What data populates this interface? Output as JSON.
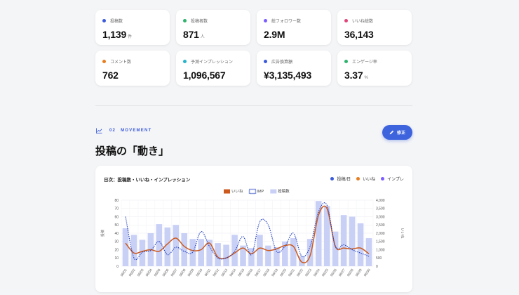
{
  "kpis": [
    {
      "label": "投稿数",
      "value": "1,139",
      "unit": "件",
      "color": "#3b5bdb"
    },
    {
      "label": "投稿者数",
      "value": "871",
      "unit": "人",
      "color": "#2fb36d"
    },
    {
      "label": "総フォロワー数",
      "value": "2.9M",
      "unit": "",
      "color": "#7c5cff"
    },
    {
      "label": "いいね総数",
      "value": "36,143",
      "unit": "",
      "color": "#e0457b"
    },
    {
      "label": "コメント数",
      "value": "762",
      "unit": "",
      "color": "#e67e22"
    },
    {
      "label": "予測インプレッション",
      "value": "1,096,567",
      "unit": "",
      "color": "#26b5c9"
    },
    {
      "label": "広告換算額",
      "value": "¥3,135,493",
      "unit": "",
      "color": "#3b5bdb"
    },
    {
      "label": "エンゲージ率",
      "value": "3.37",
      "unit": "%",
      "color": "#2fb36d"
    }
  ],
  "section": {
    "number": "02",
    "label": "MOVEMENT",
    "title": "投稿の「動き」",
    "edit_label": "修正"
  },
  "chart_card": {
    "title": "日次：投稿数・いいね・インプレッション",
    "legend": [
      {
        "label": "投稿/日",
        "color": "#3b5bdb"
      },
      {
        "label": "いいね",
        "color": "#e67e22"
      },
      {
        "label": "インプレ",
        "color": "#7c5cff"
      }
    ]
  },
  "chart_data": {
    "type": "bar",
    "categories": [
      "06/01",
      "06/02",
      "06/03",
      "06/04",
      "06/05",
      "06/06",
      "06/07",
      "06/08",
      "06/09",
      "06/10",
      "06/11",
      "06/12",
      "06/13",
      "06/14",
      "06/15",
      "06/16",
      "06/17",
      "06/18",
      "06/19",
      "06/20",
      "06/21",
      "06/22",
      "06/23",
      "06/24",
      "06/25",
      "06/26",
      "06/27",
      "06/28",
      "06/29",
      "06/30"
    ],
    "legend": [
      {
        "name": "いいね",
        "color": "#cc5a1e",
        "style": "line"
      },
      {
        "name": "IMP",
        "color": "#1f3fbf",
        "style": "dotted"
      },
      {
        "name": "投稿数",
        "color": "#c9d0f5",
        "style": "bar"
      }
    ],
    "series": [
      {
        "name": "投稿数",
        "type": "bar",
        "axis": "left",
        "color": "#c9d0f5",
        "values": [
          46,
          38,
          32,
          40,
          51,
          47,
          50,
          40,
          33,
          33,
          32,
          28,
          26,
          38,
          25,
          22,
          38,
          25,
          23,
          30,
          34,
          12,
          33,
          79,
          73,
          42,
          62,
          60,
          52,
          34
        ]
      },
      {
        "name": "いいね",
        "type": "line",
        "axis": "left",
        "color": "#cc5a1e",
        "values": [
          28,
          16,
          18,
          20,
          18,
          27,
          34,
          24,
          19,
          20,
          28,
          11,
          10,
          16,
          22,
          15,
          22,
          19,
          21,
          25,
          24,
          5,
          13,
          62,
          70,
          24,
          22,
          21,
          22,
          15
        ]
      },
      {
        "name": "IMP",
        "type": "line",
        "axis": "right",
        "color": "#1f3fbf",
        "values": [
          3000,
          500,
          850,
          950,
          1500,
          700,
          1150,
          900,
          850,
          2100,
          1200,
          500,
          500,
          900,
          1800,
          700,
          2700,
          2500,
          900,
          1200,
          2000,
          600,
          1200,
          3300,
          3700,
          1200,
          1300,
          1000,
          800,
          600
        ]
      }
    ],
    "y_left": {
      "label": "投稿",
      "min": 0,
      "max": 80,
      "ticks": [
        0,
        10,
        20,
        30,
        40,
        50,
        60,
        70,
        80
      ]
    },
    "y_right": {
      "label": "いいね",
      "min": 0,
      "max": 4000,
      "ticks": [
        "0",
        "500",
        "1,000",
        "1,500",
        "2,000",
        "2,500",
        "3,000",
        "3,500",
        "4,000"
      ]
    },
    "grid": true,
    "legend_position": "top"
  }
}
